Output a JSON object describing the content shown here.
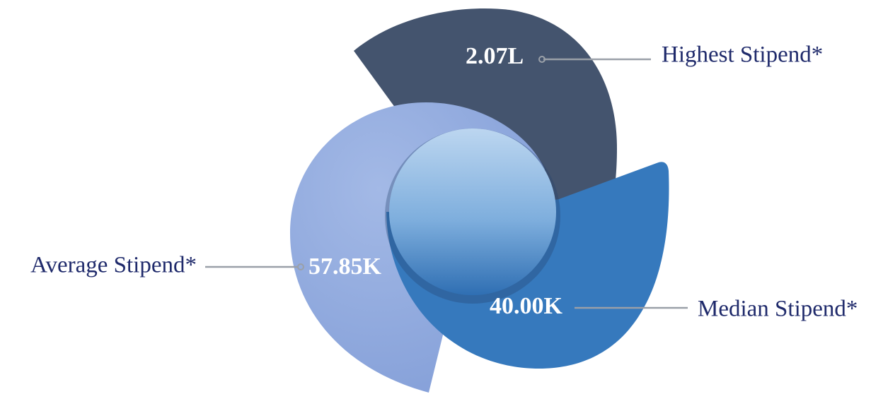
{
  "items": [
    {
      "label": "Highest Stipend*",
      "value": "2.07L"
    },
    {
      "label": "Average Stipend*",
      "value": "57.85K"
    },
    {
      "label": "Median Stipend*",
      "value": "40.00K"
    }
  ]
}
